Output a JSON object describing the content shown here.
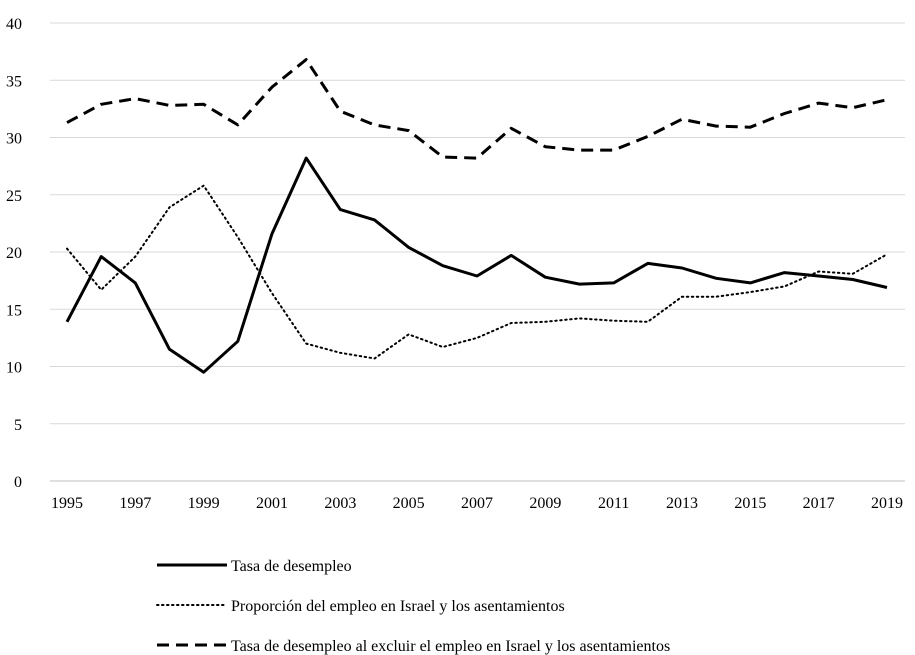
{
  "chart_data": {
    "type": "line",
    "x": [
      1995,
      1996,
      1997,
      1998,
      1999,
      2000,
      2001,
      2002,
      2003,
      2004,
      2005,
      2006,
      2007,
      2008,
      2009,
      2010,
      2011,
      2012,
      2013,
      2014,
      2015,
      2016,
      2017,
      2018,
      2019
    ],
    "x_tick_labels": [
      "1995",
      "1997",
      "1999",
      "2001",
      "2003",
      "2005",
      "2007",
      "2009",
      "2011",
      "2013",
      "2015",
      "2017",
      "2019"
    ],
    "y_tick_labels": [
      "0",
      "5",
      "10",
      "15",
      "20",
      "25",
      "30",
      "35",
      "40"
    ],
    "ylim": [
      0,
      40
    ],
    "grid": "horizontal",
    "legend_position": "bottom",
    "series": [
      {
        "name": "Tasa de desempleo",
        "style": "solid",
        "color": "#000000",
        "values": [
          13.9,
          19.6,
          17.3,
          11.5,
          9.5,
          12.2,
          21.6,
          28.2,
          23.7,
          22.8,
          20.4,
          18.8,
          17.9,
          19.7,
          17.8,
          17.2,
          17.3,
          19.0,
          18.6,
          17.7,
          17.3,
          18.2,
          17.9,
          17.6,
          16.9
        ]
      },
      {
        "name": "Proporción del empleo en Israel y los asentamientos",
        "style": "dotted",
        "color": "#000000",
        "values": [
          20.3,
          16.7,
          19.6,
          23.9,
          25.8,
          21.3,
          16.4,
          12.0,
          11.2,
          10.7,
          12.8,
          11.7,
          12.5,
          13.8,
          13.9,
          14.2,
          14.0,
          13.9,
          16.1,
          16.1,
          16.5,
          17.0,
          18.3,
          18.1,
          19.8
        ]
      },
      {
        "name": "Tasa de desempleo al excluir el empleo en Israel y los asentamientos",
        "style": "dashed",
        "color": "#000000",
        "values": [
          31.3,
          32.9,
          33.4,
          32.8,
          32.9,
          31.1,
          34.4,
          36.8,
          32.3,
          31.1,
          30.6,
          28.3,
          28.2,
          30.8,
          29.2,
          28.9,
          28.9,
          30.1,
          31.6,
          31.0,
          30.9,
          32.1,
          33.0,
          32.6,
          33.3
        ]
      }
    ]
  }
}
